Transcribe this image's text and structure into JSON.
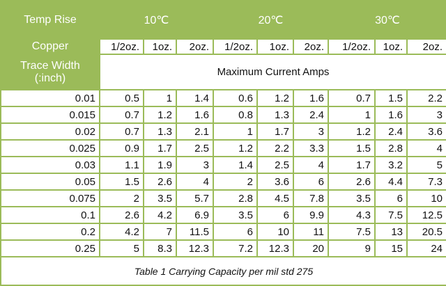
{
  "table": {
    "header": {
      "temp_rise": "Temp Rise",
      "temps": [
        "10℃",
        "20℃",
        "30℃"
      ],
      "copper": "Copper",
      "weights": [
        "1/2oz.",
        "1oz.",
        "2oz.",
        "1/2oz.",
        "1oz.",
        "2oz.",
        "1/2oz.",
        "1oz.",
        "2oz."
      ],
      "trace_width": [
        "Trace Width",
        "(:inch)"
      ],
      "max_current": "Maximum Current Amps"
    },
    "rows": [
      [
        "0.01",
        "0.5",
        "1",
        "1.4",
        "0.6",
        "1.2",
        "1.6",
        "0.7",
        "1.5",
        "2.2"
      ],
      [
        "0.015",
        "0.7",
        "1.2",
        "1.6",
        "0.8",
        "1.3",
        "2.4",
        "1",
        "1.6",
        "3"
      ],
      [
        "0.02",
        "0.7",
        "1.3",
        "2.1",
        "1",
        "1.7",
        "3",
        "1.2",
        "2.4",
        "3.6"
      ],
      [
        "0.025",
        "0.9",
        "1.7",
        "2.5",
        "1.2",
        "2.2",
        "3.3",
        "1.5",
        "2.8",
        "4"
      ],
      [
        "0.03",
        "1.1",
        "1.9",
        "3",
        "1.4",
        "2.5",
        "4",
        "1.7",
        "3.2",
        "5"
      ],
      [
        "0.05",
        "1.5",
        "2.6",
        "4",
        "2",
        "3.6",
        "6",
        "2.6",
        "4.4",
        "7.3"
      ],
      [
        "0.075",
        "2",
        "3.5",
        "5.7",
        "2.8",
        "4.5",
        "7.8",
        "3.5",
        "6",
        "10"
      ],
      [
        "0.1",
        "2.6",
        "4.2",
        "6.9",
        "3.5",
        "6",
        "9.9",
        "4.3",
        "7.5",
        "12.5"
      ],
      [
        "0.2",
        "4.2",
        "7",
        "11.5",
        "6",
        "10",
        "11",
        "7.5",
        "13",
        "20.5"
      ],
      [
        "0.25",
        "5",
        "8.3",
        "12.3",
        "7.2",
        "12.3",
        "20",
        "9",
        "15",
        "24"
      ]
    ],
    "caption": "Table 1 Carrying Capacity per mil std 275"
  }
}
